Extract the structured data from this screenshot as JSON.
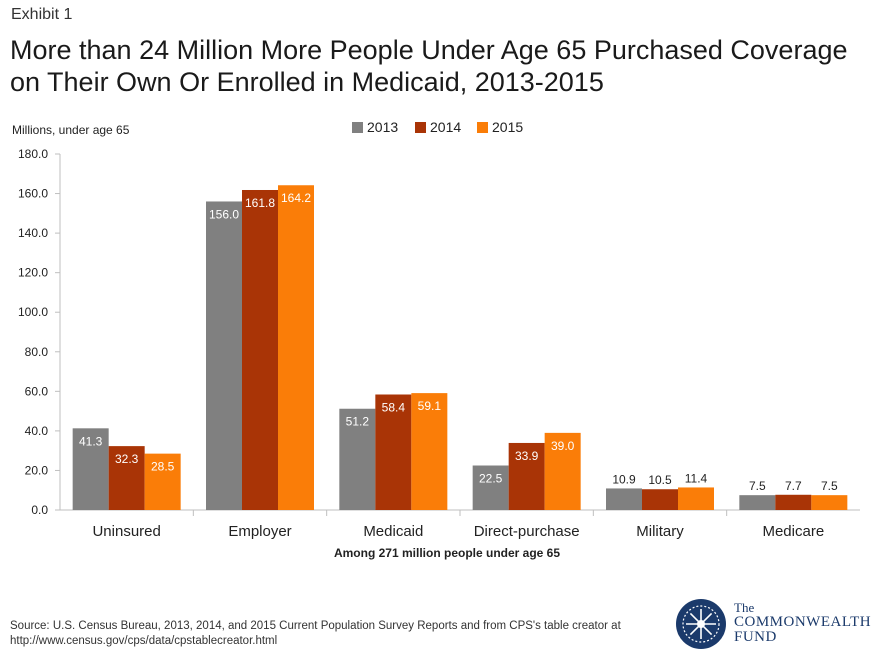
{
  "exhibit_label": "Exhibit 1",
  "title": "More than 24 Million More People Under Age 65 Purchased Coverage on Their Own Or Enrolled in Medicaid, 2013-2015",
  "source": "Source: U.S. Census Bureau, 2013, 2014, and 2015 Current Population Survey Reports and from CPS's table creator at http://www.census.gov/cps/data/cpstablecreator.html",
  "logo": {
    "line1": "The",
    "line2": "COMMONWEALTH",
    "line3": "FUND"
  },
  "chart_data": {
    "type": "bar",
    "ylabel": "Millions, under age 65",
    "xlabel": "Among 271 million people under age 65",
    "ylim": [
      0,
      180
    ],
    "yticks": [
      "0.0",
      "20.0",
      "40.0",
      "60.0",
      "80.0",
      "100.0",
      "120.0",
      "140.0",
      "160.0",
      "180.0"
    ],
    "categories": [
      "Uninsured",
      "Employer",
      "Medicaid",
      "Direct-purchase",
      "Military",
      "Medicare"
    ],
    "series": [
      {
        "name": "2013",
        "color": "#808080",
        "values": [
          41.3,
          156.0,
          51.2,
          22.5,
          10.9,
          7.5
        ],
        "labels": [
          "41.3",
          "156.0",
          "51.2",
          "22.5",
          "10.9",
          "7.5"
        ]
      },
      {
        "name": "2014",
        "color": "#a93406",
        "values": [
          32.3,
          161.8,
          58.4,
          33.9,
          10.5,
          7.7
        ],
        "labels": [
          "32.3",
          "161.8",
          "58.4",
          "33.9",
          "10.5",
          "7.7"
        ]
      },
      {
        "name": "2015",
        "color": "#fa7d08",
        "values": [
          28.5,
          164.2,
          59.1,
          39.0,
          11.4,
          7.5
        ],
        "labels": [
          "28.5",
          "164.2",
          "59.1",
          "39.0",
          "11.4",
          "7.5"
        ]
      }
    ]
  }
}
